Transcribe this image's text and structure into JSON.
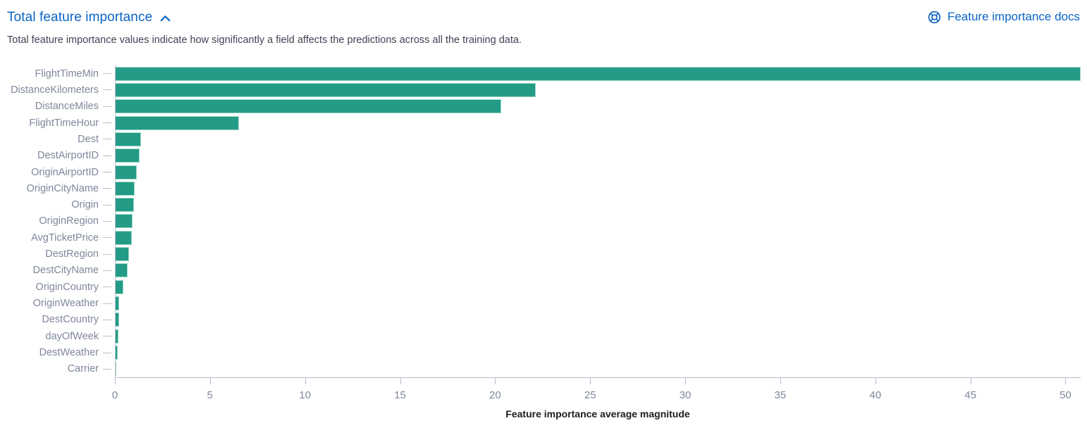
{
  "header": {
    "title": "Total feature importance",
    "collapse_icon": "chevron-up",
    "docs_link_label": "Feature importance docs",
    "docs_link_icon": "help"
  },
  "description": "Total feature importance values indicate how significantly a field affects the predictions across all the training data.",
  "colors": {
    "accent_blue": "#0b64c5",
    "bar_teal": "#239b85",
    "bar_border": "#9ad6c8",
    "axis_line": "#b7bdca",
    "axis_text": "#7e879b"
  },
  "chart_data": {
    "type": "bar",
    "orientation": "horizontal",
    "title": "Total feature importance",
    "xlabel": "Feature importance average magnitude",
    "ylabel": "",
    "xlim": [
      0,
      50.8
    ],
    "x_ticks": [
      0,
      5,
      10,
      15,
      20,
      25,
      30,
      35,
      40,
      45,
      50
    ],
    "grid": false,
    "legend": false,
    "categories": [
      "FlightTimeMin",
      "DistanceKilometers",
      "DistanceMiles",
      "FlightTimeHour",
      "Dest",
      "DestAirportID",
      "OriginAirportID",
      "OriginCityName",
      "Origin",
      "OriginRegion",
      "AvgTicketPrice",
      "DestRegion",
      "DestCityName",
      "OriginCountry",
      "OriginWeather",
      "DestCountry",
      "dayOfWeek",
      "DestWeather",
      "Carrier"
    ],
    "values": [
      50.8,
      22.1,
      20.3,
      6.5,
      1.35,
      1.28,
      1.1,
      1.0,
      0.95,
      0.9,
      0.85,
      0.72,
      0.63,
      0.41,
      0.19,
      0.17,
      0.15,
      0.11,
      0.04
    ]
  }
}
